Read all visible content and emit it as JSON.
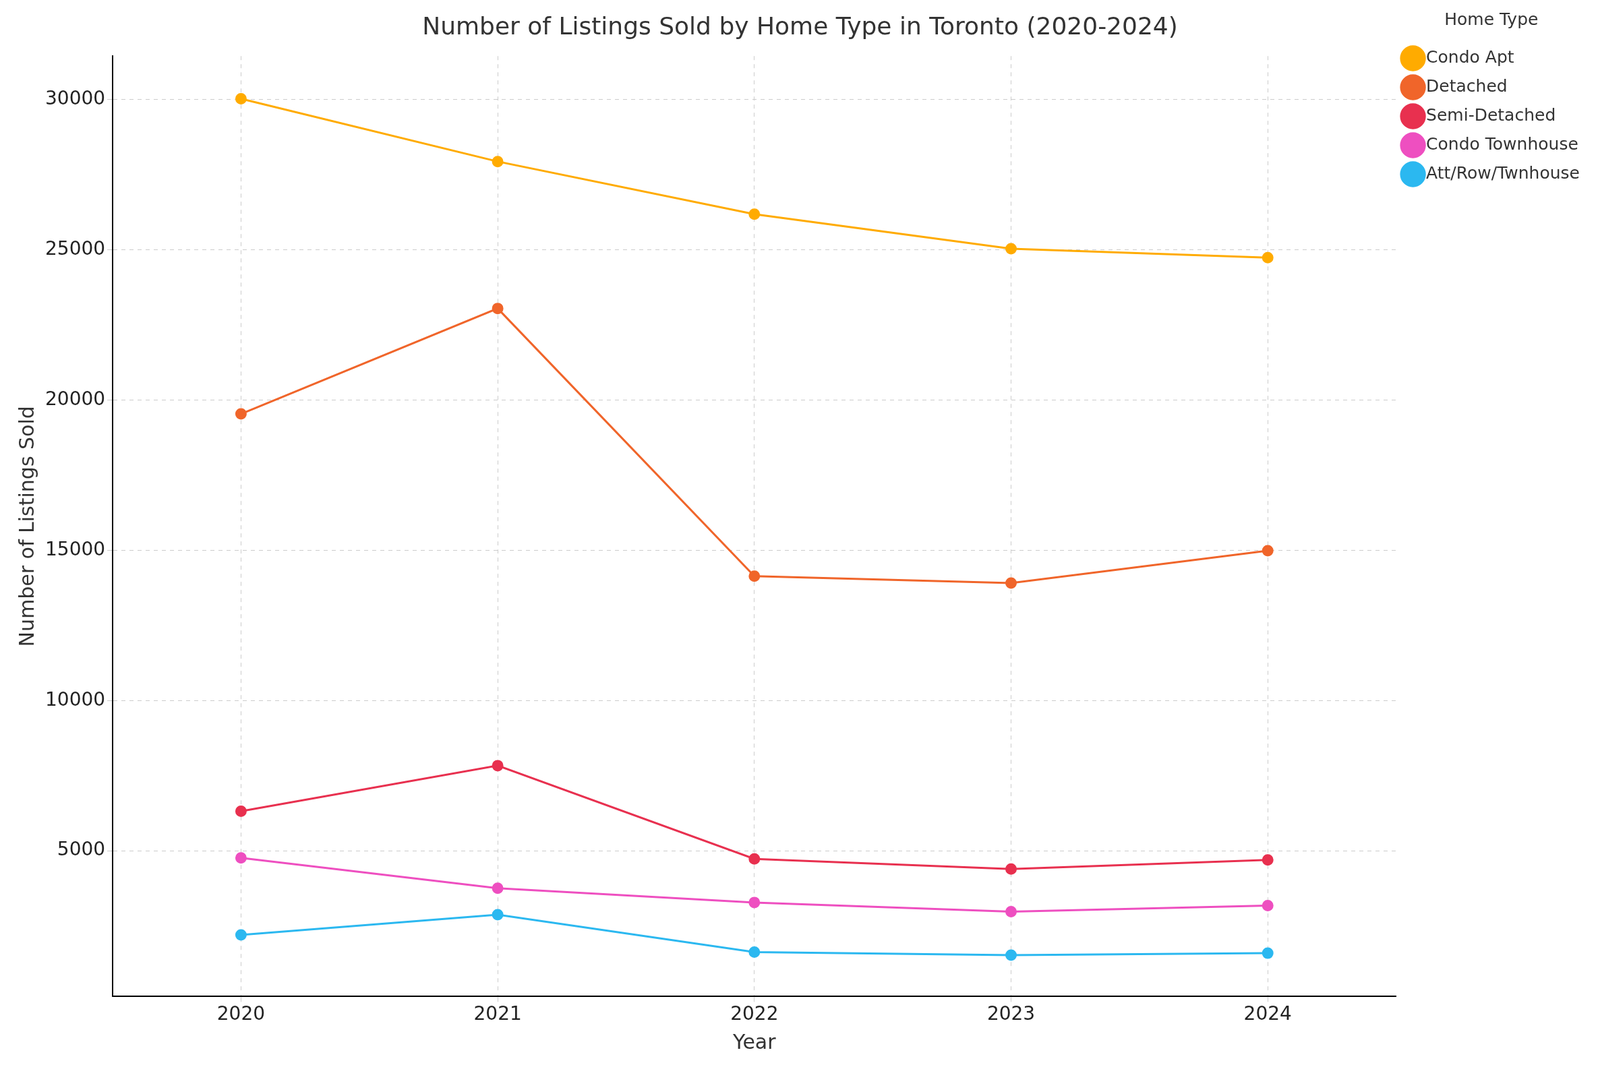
{
  "chart_data": {
    "type": "line",
    "title": "Number of Listings Sold by Home Type in Toronto (2020-2024)",
    "x_label": "Year",
    "y_label": "Number of Listings Sold",
    "categories": [
      "2020",
      "2021",
      "2022",
      "2023",
      "2024"
    ],
    "series": [
      {
        "name": "Condo Apt",
        "color": "#ffab00",
        "values": [
          30030,
          27940,
          26190,
          25040,
          24740
        ]
      },
      {
        "name": "Detached",
        "color": "#f0652a",
        "values": [
          19540,
          23050,
          14140,
          13910,
          14990
        ]
      },
      {
        "name": "Semi-Detached",
        "color": "#e8304f",
        "values": [
          6316,
          7834,
          4730,
          4393,
          4696
        ]
      },
      {
        "name": "Condo Townhouse",
        "color": "#ee4fc0",
        "values": [
          4764,
          3752,
          3280,
          2976,
          3178
        ]
      },
      {
        "name": "Att/Row/Twnhouse",
        "color": "#2bb8f0",
        "values": [
          2200,
          2875,
          1626,
          1525,
          1592
        ]
      }
    ],
    "ylim": [
      150,
      31450
    ],
    "yticks": [
      5000,
      10000,
      15000,
      20000,
      25000,
      30000
    ],
    "grid": true,
    "legend": "upper right",
    "legend_title": "Home Type",
    "marker": "circle",
    "line_style": "solid"
  }
}
